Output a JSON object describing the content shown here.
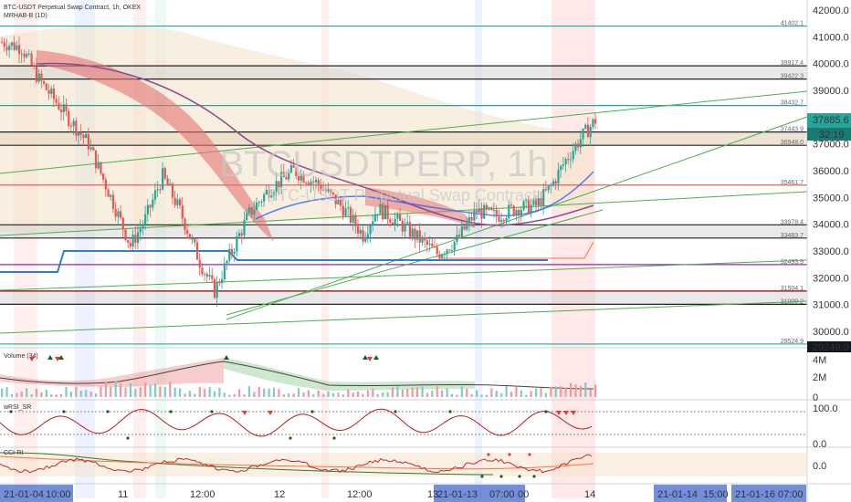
{
  "header": {
    "title": "BTC-USDT Perpetual Swap Contract, 1h, OKEX",
    "indicator": "MRHAB-B (1D)"
  },
  "watermark": {
    "symbol": "BTCUSDTPERP, 1h",
    "description": "BTC-USDT Perpetual Swap Contract"
  },
  "price_axis": {
    "ticks": [
      "42000.0",
      "41000.0",
      "40000.0",
      "39000.0",
      "38000.0",
      "37000.0",
      "36000.0",
      "35000.0",
      "34000.0",
      "33000.0",
      "32000.0",
      "31000.0",
      "30000.0"
    ],
    "current_price": "37885.6",
    "countdown": "32:19",
    "bottom_label": "29249.0"
  },
  "levels": [
    {
      "label": "41402.1",
      "value": 41402.1,
      "color": "#26a69a"
    },
    {
      "label": "39917.4",
      "value": 39917.4,
      "color": "#222222"
    },
    {
      "label": "39422.3",
      "value": 39422.3,
      "color": "#222222"
    },
    {
      "label": "38432.7",
      "value": 38432.7,
      "color": "#26a69a"
    },
    {
      "label": "37443.9",
      "value": 37443.9,
      "color": "#222222"
    },
    {
      "label": "36948.0",
      "value": 36948.0,
      "color": "#222222"
    },
    {
      "label": "35461.7",
      "value": 35461.7,
      "color": "#e05050"
    },
    {
      "label": "33978.4",
      "value": 33978.4,
      "color": "#222222"
    },
    {
      "label": "33483.7",
      "value": 33483.7,
      "color": "#222222"
    },
    {
      "label": "32493.9",
      "value": 32493.9,
      "color": "#9c27b0"
    },
    {
      "label": "31504.1",
      "value": 31504.1,
      "color": "#8b0000"
    },
    {
      "label": "31009.2",
      "value": 31009.2,
      "color": "#222222"
    },
    {
      "label": "29524.9",
      "value": 29524.9,
      "color": "#26a69a"
    }
  ],
  "panes": {
    "volume": {
      "name": "Volume (34)",
      "ticks": [
        "4M",
        "2M",
        "0"
      ]
    },
    "wrsi": {
      "name": "wRSI_SR",
      "ticks": [
        "100.0",
        "0.0"
      ]
    },
    "cci": {
      "name": "CCI-RI",
      "ticks": [
        "0.0"
      ]
    }
  },
  "time_axis": {
    "labels": [
      "21-01-04",
      "10:00",
      "11",
      "12:00",
      "12",
      "12:00",
      "13",
      "21-01-13",
      "07:00",
      "00",
      "14",
      "21-01-14",
      "15:00",
      "21-01-16",
      "07:00"
    ],
    "highlighted": [
      "21-01-04 10:00",
      "21-01-13 07:00",
      "21-01-14 15:00",
      "21-01-16 07:00"
    ]
  },
  "colors": {
    "bull": "#26a69a",
    "bear": "#ef5350",
    "price_label": "#26a69a",
    "countdown": "#1b7a70",
    "bottom_label": "#131722"
  },
  "chart_data": {
    "type": "candlestick",
    "title": "BTC-USDT Perpetual Swap Contract, 1h, OKEX",
    "ylim": [
      29249,
      42400
    ],
    "current_close": 37885.6,
    "close_path": [
      {
        "i": 0,
        "close": 40800
      },
      {
        "i": 8,
        "close": 40600
      },
      {
        "i": 15,
        "close": 39400
      },
      {
        "i": 25,
        "close": 38200
      },
      {
        "i": 35,
        "close": 37000
      },
      {
        "i": 45,
        "close": 34800
      },
      {
        "i": 52,
        "close": 33200
      },
      {
        "i": 58,
        "close": 34200
      },
      {
        "i": 65,
        "close": 35800
      },
      {
        "i": 72,
        "close": 34500
      },
      {
        "i": 80,
        "close": 32600
      },
      {
        "i": 86,
        "close": 31500
      },
      {
        "i": 92,
        "close": 32800
      },
      {
        "i": 100,
        "close": 34400
      },
      {
        "i": 108,
        "close": 35300
      },
      {
        "i": 118,
        "close": 36000
      },
      {
        "i": 128,
        "close": 35500
      },
      {
        "i": 138,
        "close": 34600
      },
      {
        "i": 146,
        "close": 33600
      },
      {
        "i": 152,
        "close": 34600
      },
      {
        "i": 160,
        "close": 34100
      },
      {
        "i": 168,
        "close": 33500
      },
      {
        "i": 176,
        "close": 32900
      },
      {
        "i": 184,
        "close": 33400
      },
      {
        "i": 192,
        "close": 34500
      },
      {
        "i": 200,
        "close": 34300
      },
      {
        "i": 208,
        "close": 34600
      },
      {
        "i": 216,
        "close": 34700
      },
      {
        "i": 222,
        "close": 35400
      },
      {
        "i": 228,
        "close": 36400
      },
      {
        "i": 234,
        "close": 37200
      },
      {
        "i": 240,
        "close": 37885.6
      }
    ]
  }
}
